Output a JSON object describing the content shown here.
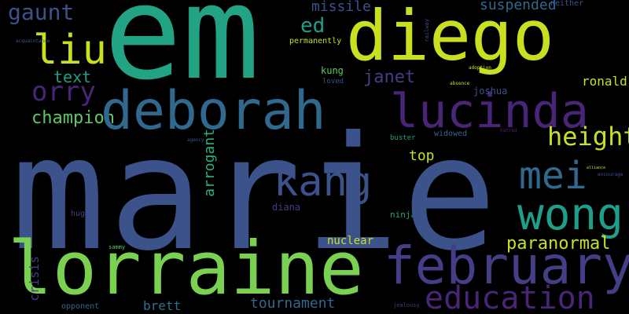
{
  "background_color": "#000000",
  "words": {
    "em": "em",
    "diego": "diego",
    "marie": "marie",
    "lorraine": "lorraine",
    "deborah": "deborah",
    "lucinda": "lucinda",
    "february": "february",
    "wong": "wong",
    "mei": "mei",
    "kang": "kang",
    "education": "education",
    "liu": "liu",
    "orry": "orry",
    "gaunt": "gaunt",
    "champion": "champion",
    "text": "text",
    "height": "height",
    "ed": "ed",
    "janet": "janet",
    "missile": "missile",
    "suspended": "suspended",
    "ronald": "ronald",
    "paranormal": "paranormal",
    "tournament": "tournament",
    "brett": "brett",
    "nuclear": "nuclear",
    "crisis": "crisis",
    "arrogant": "arrogant",
    "top": "top",
    "joshua": "joshua",
    "diana": "diana",
    "kung": "kung",
    "permanently": "permanently",
    "loved": "loved",
    "buster": "buster",
    "widowed": "widowed",
    "hugh": "hugh",
    "ninja": "ninja",
    "opponent": "opponent",
    "neither": "neither",
    "sammy": "sammy",
    "jealousy": "jealousy",
    "absence": "absence",
    "adoption": "adoption",
    "acquaintance": "acquaintance",
    "encourage": "encourage",
    "alliance": "alliance",
    "hatred": "hatred",
    "agency": "agency",
    "railway": "railway"
  }
}
